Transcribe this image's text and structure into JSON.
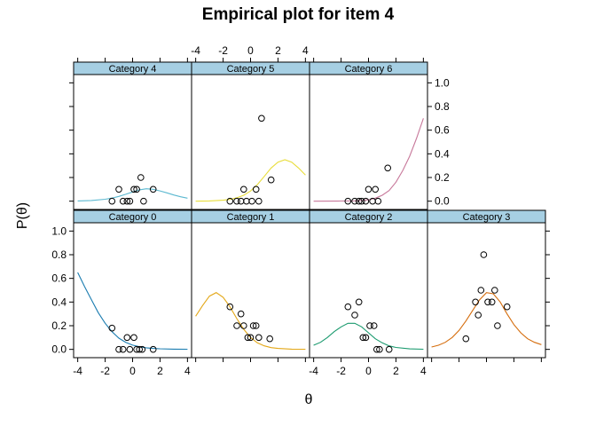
{
  "chart_data": {
    "type": "scatter",
    "title": "Empirical plot for item 4",
    "xlabel": "θ",
    "ylabel": "P(θ)",
    "xlim": [
      -4.3,
      4.3
    ],
    "ylim": [
      -0.07,
      1.07
    ],
    "x_ticks": [
      -4,
      -2,
      0,
      2,
      4
    ],
    "x_tick_labels": [
      "-4",
      "-2",
      "0",
      "2",
      "4"
    ],
    "y_ticks": [
      0,
      0.2,
      0.4,
      0.6,
      0.8,
      1
    ],
    "y_tick_labels": [
      "0.0",
      "0.2",
      "0.4",
      "0.6",
      "0.8",
      "1.0"
    ],
    "panels": [
      {
        "strip": "Category 0",
        "color": "#1a7cb0",
        "curve": [
          [
            -4,
            0.65
          ],
          [
            -3.5,
            0.53
          ],
          [
            -3,
            0.42
          ],
          [
            -2.5,
            0.31
          ],
          [
            -2,
            0.22
          ],
          [
            -1.5,
            0.15
          ],
          [
            -1,
            0.095
          ],
          [
            -0.5,
            0.06
          ],
          [
            0,
            0.036
          ],
          [
            0.5,
            0.022
          ],
          [
            1,
            0.013
          ],
          [
            1.5,
            0.008
          ],
          [
            2,
            0.005
          ],
          [
            3,
            0.002
          ],
          [
            4,
            0.001
          ]
        ],
        "points": [
          [
            -1.5,
            0.18
          ],
          [
            -1,
            0
          ],
          [
            -0.7,
            0
          ],
          [
            -0.4,
            0.1
          ],
          [
            -0.2,
            0
          ],
          [
            0.1,
            0.1
          ],
          [
            0.3,
            0
          ],
          [
            0.5,
            0
          ],
          [
            0.7,
            0
          ],
          [
            1.5,
            0
          ]
        ]
      },
      {
        "strip": "Category 1",
        "color": "#e3a717",
        "curve": [
          [
            -4,
            0.28
          ],
          [
            -3.5,
            0.37
          ],
          [
            -3,
            0.45
          ],
          [
            -2.5,
            0.48
          ],
          [
            -2,
            0.44
          ],
          [
            -1.5,
            0.36
          ],
          [
            -1,
            0.26
          ],
          [
            -0.5,
            0.17
          ],
          [
            0,
            0.1
          ],
          [
            0.5,
            0.055
          ],
          [
            1,
            0.03
          ],
          [
            1.5,
            0.015
          ],
          [
            2,
            0.008
          ],
          [
            3,
            0.002
          ],
          [
            4,
            0.001
          ]
        ],
        "points": [
          [
            -1.5,
            0.36
          ],
          [
            -1,
            0.2
          ],
          [
            -0.7,
            0.3
          ],
          [
            -0.5,
            0.2
          ],
          [
            -0.2,
            0.1
          ],
          [
            0,
            0.1
          ],
          [
            0.2,
            0.2
          ],
          [
            0.4,
            0.2
          ],
          [
            0.6,
            0.1
          ],
          [
            1.4,
            0.09
          ]
        ]
      },
      {
        "strip": "Category 2",
        "color": "#1a9a6e",
        "curve": [
          [
            -4,
            0.035
          ],
          [
            -3.5,
            0.06
          ],
          [
            -3,
            0.1
          ],
          [
            -2.5,
            0.15
          ],
          [
            -2,
            0.19
          ],
          [
            -1.5,
            0.22
          ],
          [
            -1,
            0.22
          ],
          [
            -0.5,
            0.19
          ],
          [
            0,
            0.14
          ],
          [
            0.5,
            0.09
          ],
          [
            1,
            0.055
          ],
          [
            1.5,
            0.03
          ],
          [
            2,
            0.016
          ],
          [
            3,
            0.004
          ],
          [
            4,
            0.001
          ]
        ],
        "points": [
          [
            -1.5,
            0.36
          ],
          [
            -1,
            0.29
          ],
          [
            -0.7,
            0.4
          ],
          [
            -0.4,
            0.1
          ],
          [
            -0.2,
            0.1
          ],
          [
            0.1,
            0.2
          ],
          [
            0.4,
            0.2
          ],
          [
            0.6,
            0
          ],
          [
            0.8,
            0
          ],
          [
            1.5,
            0
          ]
        ]
      },
      {
        "strip": "Category 3",
        "color": "#d56d0d",
        "curve": [
          [
            -4,
            0.02
          ],
          [
            -3.5,
            0.035
          ],
          [
            -3,
            0.06
          ],
          [
            -2.5,
            0.1
          ],
          [
            -2,
            0.16
          ],
          [
            -1.5,
            0.24
          ],
          [
            -1,
            0.33
          ],
          [
            -0.5,
            0.42
          ],
          [
            0,
            0.48
          ],
          [
            0.5,
            0.47
          ],
          [
            1,
            0.4
          ],
          [
            1.5,
            0.3
          ],
          [
            2,
            0.21
          ],
          [
            2.5,
            0.14
          ],
          [
            3,
            0.09
          ],
          [
            3.5,
            0.06
          ],
          [
            4,
            0.04
          ]
        ],
        "points": [
          [
            -1.5,
            0.09
          ],
          [
            -0.8,
            0.4
          ],
          [
            -0.6,
            0.29
          ],
          [
            -0.4,
            0.5
          ],
          [
            -0.2,
            0.8
          ],
          [
            0.1,
            0.4
          ],
          [
            0.4,
            0.4
          ],
          [
            0.6,
            0.5
          ],
          [
            0.8,
            0.2
          ],
          [
            1.5,
            0.36
          ]
        ]
      },
      {
        "strip": "Category 4",
        "color": "#5bb8d0",
        "curve": [
          [
            -4,
            0.002
          ],
          [
            -3,
            0.006
          ],
          [
            -2,
            0.016
          ],
          [
            -1.5,
            0.026
          ],
          [
            -1,
            0.04
          ],
          [
            -0.5,
            0.058
          ],
          [
            0,
            0.078
          ],
          [
            0.5,
            0.096
          ],
          [
            1,
            0.105
          ],
          [
            1.5,
            0.1
          ],
          [
            2,
            0.087
          ],
          [
            2.5,
            0.07
          ],
          [
            3,
            0.052
          ],
          [
            3.5,
            0.037
          ],
          [
            4,
            0.025
          ]
        ],
        "points": [
          [
            -1.5,
            0
          ],
          [
            -1,
            0.1
          ],
          [
            -0.7,
            0
          ],
          [
            -0.4,
            0
          ],
          [
            -0.2,
            0
          ],
          [
            0.1,
            0.1
          ],
          [
            0.3,
            0.1
          ],
          [
            0.6,
            0.2
          ],
          [
            0.8,
            0
          ],
          [
            1.5,
            0.1
          ]
        ]
      },
      {
        "strip": "Category 5",
        "color": "#e8dd3a",
        "curve": [
          [
            -4,
            0.0
          ],
          [
            -3,
            0.002
          ],
          [
            -2,
            0.008
          ],
          [
            -1.5,
            0.015
          ],
          [
            -1,
            0.028
          ],
          [
            -0.5,
            0.05
          ],
          [
            0,
            0.086
          ],
          [
            0.5,
            0.14
          ],
          [
            1,
            0.21
          ],
          [
            1.5,
            0.28
          ],
          [
            2,
            0.33
          ],
          [
            2.5,
            0.35
          ],
          [
            3,
            0.33
          ],
          [
            3.5,
            0.28
          ],
          [
            4,
            0.22
          ]
        ],
        "points": [
          [
            -1.5,
            0
          ],
          [
            -1,
            0
          ],
          [
            -0.7,
            0
          ],
          [
            -0.5,
            0.1
          ],
          [
            -0.3,
            0
          ],
          [
            0.1,
            0
          ],
          [
            0.4,
            0.1
          ],
          [
            0.6,
            0
          ],
          [
            0.8,
            0.7
          ],
          [
            1.5,
            0.18
          ]
        ]
      },
      {
        "strip": "Category 6",
        "color": "#c7789a",
        "curve": [
          [
            -4,
            0.0
          ],
          [
            -2,
            0.001
          ],
          [
            -1,
            0.003
          ],
          [
            -0.5,
            0.006
          ],
          [
            0,
            0.012
          ],
          [
            0.5,
            0.025
          ],
          [
            1,
            0.05
          ],
          [
            1.5,
            0.09
          ],
          [
            2,
            0.16
          ],
          [
            2.5,
            0.26
          ],
          [
            3,
            0.38
          ],
          [
            3.5,
            0.53
          ],
          [
            4,
            0.7
          ]
        ],
        "points": [
          [
            -1.5,
            0
          ],
          [
            -1,
            0
          ],
          [
            -0.7,
            0
          ],
          [
            -0.5,
            0
          ],
          [
            -0.2,
            0
          ],
          [
            0,
            0.1
          ],
          [
            0.3,
            0
          ],
          [
            0.5,
            0.1
          ],
          [
            0.7,
            0
          ],
          [
            1.4,
            0.28
          ]
        ]
      }
    ]
  }
}
